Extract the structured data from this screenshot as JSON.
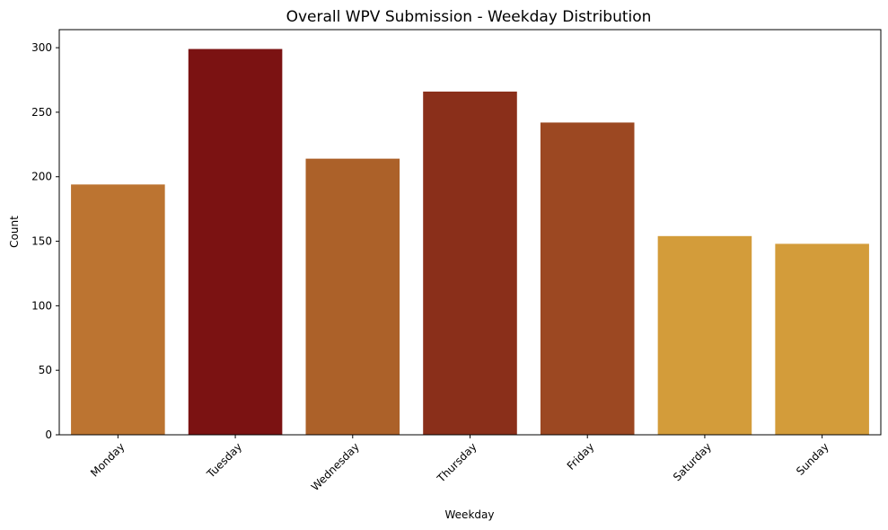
{
  "chart_data": {
    "type": "bar",
    "title": "Overall WPV Submission - Weekday Distribution",
    "xlabel": "Weekday",
    "ylabel": "Count",
    "categories": [
      "Monday",
      "Tuesday",
      "Wednesday",
      "Thursday",
      "Friday",
      "Saturday",
      "Sunday"
    ],
    "values": [
      194,
      299,
      214,
      266,
      242,
      154,
      148
    ],
    "colors": [
      "#BC7431",
      "#7B1212",
      "#AC6129",
      "#8A2F1A",
      "#9C4822",
      "#D39C3A",
      "#D39C3A"
    ],
    "ylim": [
      0,
      314
    ],
    "yticks": [
      0,
      50,
      100,
      150,
      200,
      250,
      300
    ],
    "ytick_labels": [
      "0",
      "50",
      "100",
      "150",
      "200",
      "250",
      "300"
    ],
    "grid": false,
    "legend": "none"
  }
}
